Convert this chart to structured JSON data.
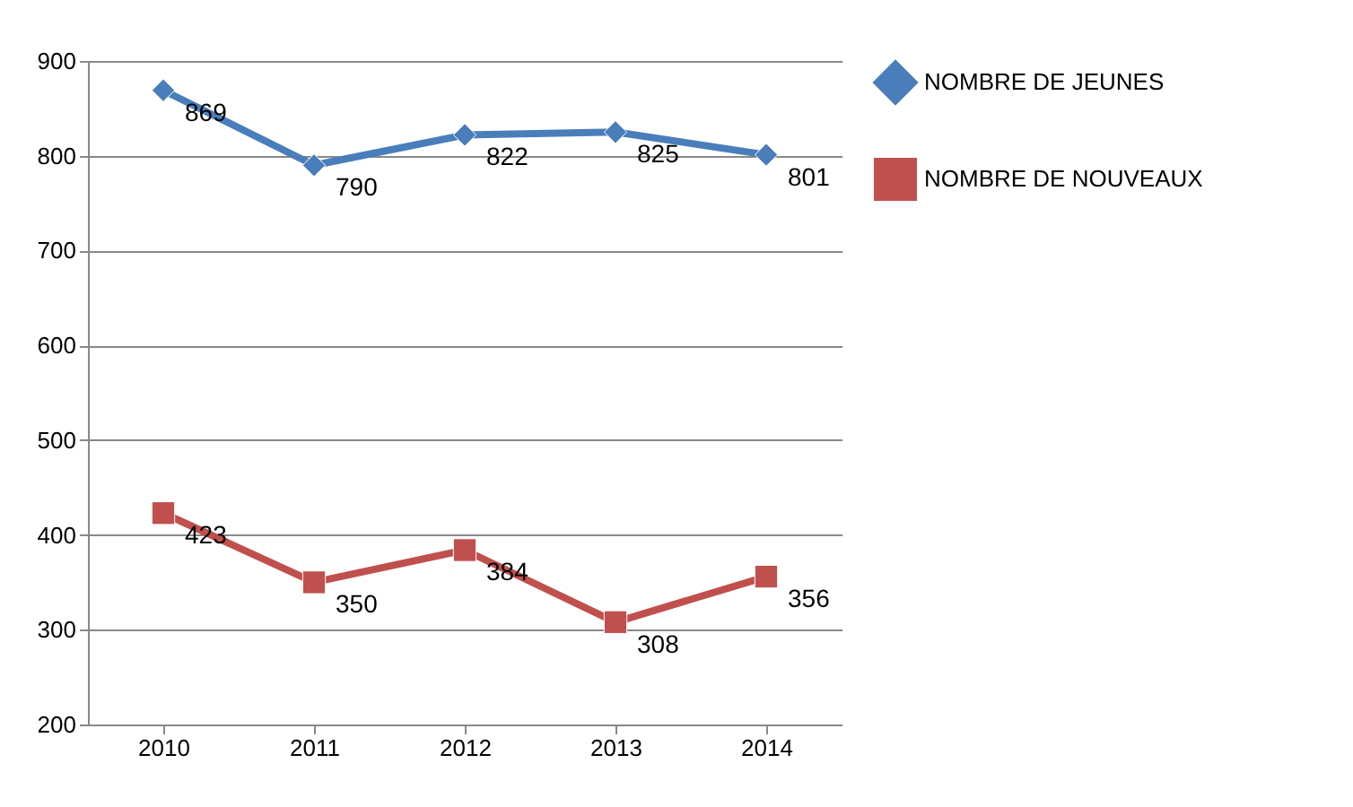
{
  "chart_data": {
    "type": "line",
    "categories": [
      "2010",
      "2011",
      "2012",
      "2013",
      "2014"
    ],
    "series": [
      {
        "name": "NOMBRE DE JEUNES",
        "color": "#4a7ebb",
        "marker": "diamond",
        "values": [
          869,
          790,
          822,
          825,
          801
        ]
      },
      {
        "name": "NOMBRE DE NOUVEAUX",
        "color": "#c0504d",
        "marker": "square",
        "values": [
          423,
          350,
          384,
          308,
          356
        ]
      }
    ],
    "ylim": [
      200,
      900
    ],
    "yticks": [
      200,
      300,
      400,
      500,
      600,
      700,
      800,
      900
    ],
    "grid": "y",
    "line_style": "solid",
    "legend": "right",
    "data_labels": true
  }
}
